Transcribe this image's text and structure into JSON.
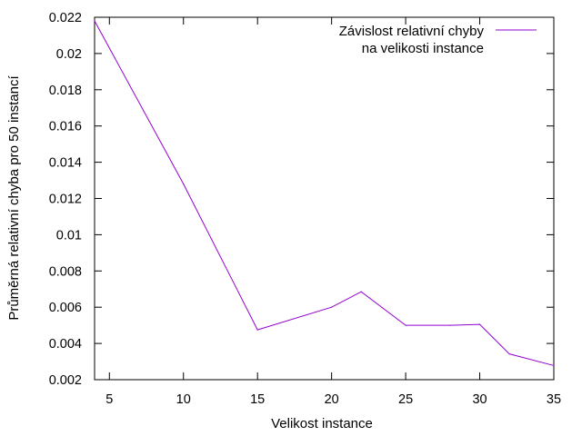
{
  "chart_data": {
    "type": "line",
    "xlabel": "Velikost instance",
    "ylabel": "Průměrná relativní chyba pro 50 instancí",
    "xlim": [
      4,
      35
    ],
    "ylim": [
      0.002,
      0.022
    ],
    "xticks": [
      5,
      10,
      15,
      20,
      25,
      30,
      35
    ],
    "yticks": [
      0.002,
      0.004,
      0.006,
      0.008,
      0.01,
      0.012,
      0.014,
      0.016,
      0.018,
      0.02,
      0.022
    ],
    "ytick_labels": [
      "0.002",
      "0.004",
      "0.006",
      "0.008",
      "0.01",
      "0.012",
      "0.014",
      "0.016",
      "0.018",
      "0.02",
      "0.022"
    ],
    "grid": false,
    "legend_position": "top-right",
    "series": [
      {
        "name": "Závislost relativní chyby na velikosti instance",
        "legend_lines": [
          "Závislost relativní chyby",
          "na velikosti instance"
        ],
        "color": "#9400d3",
        "x": [
          4,
          10,
          15,
          20,
          22,
          25,
          28,
          30,
          32,
          35
        ],
        "y": [
          0.0218,
          0.0128,
          0.00475,
          0.006,
          0.00685,
          0.005,
          0.005,
          0.00505,
          0.00342,
          0.00278
        ]
      }
    ]
  }
}
